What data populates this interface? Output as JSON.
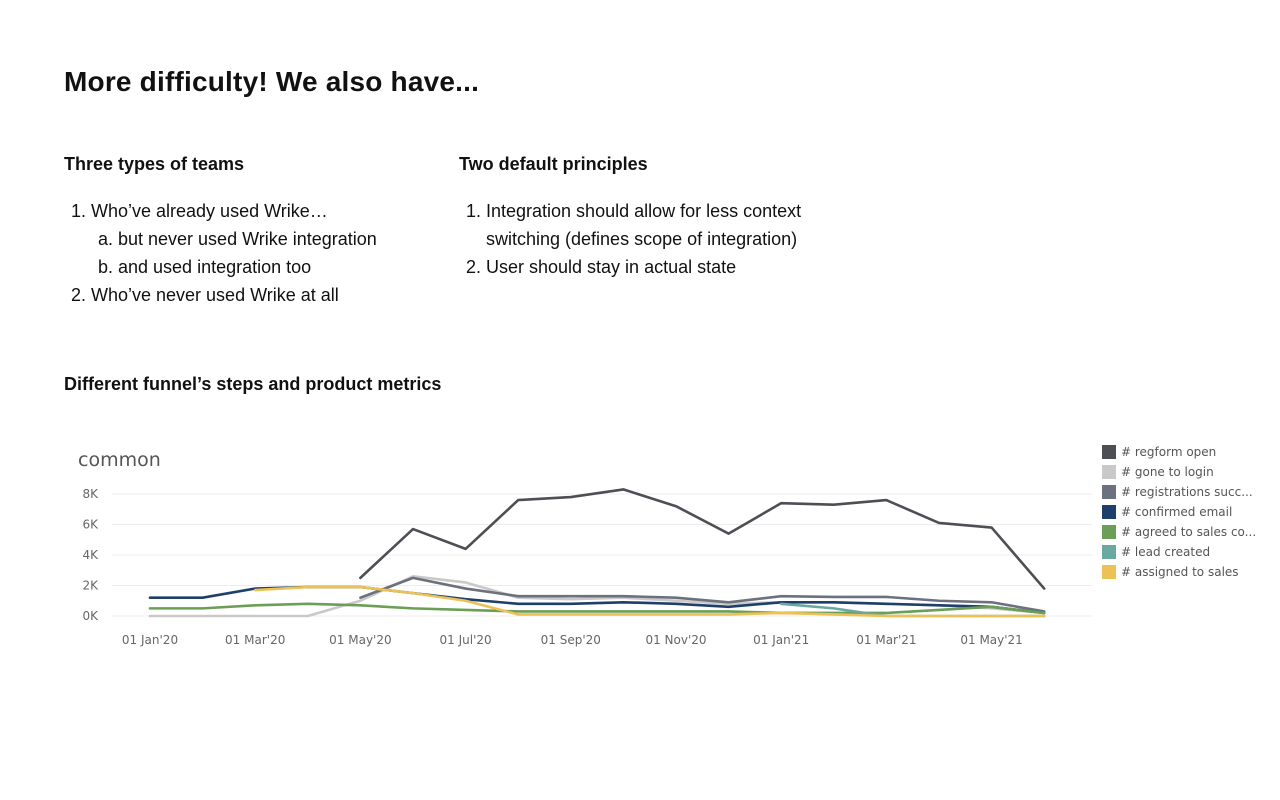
{
  "page": {
    "title": "More difficulty! We also have...",
    "left_column": {
      "heading": "Three types of teams",
      "items": [
        {
          "text": "Who’ve already used Wrike…",
          "subitems": [
            "but never used Wrike integration",
            "and used integration too"
          ]
        },
        {
          "text": "Who’ve never used Wrike at all"
        }
      ]
    },
    "right_column": {
      "heading": "Two default principles",
      "items": [
        {
          "text": "Integration should allow for less context switching (defines scope of integration)"
        },
        {
          "text": "User should stay in actual state"
        }
      ]
    },
    "chart_section_title": "Different funnel’s steps and product metrics"
  },
  "chart_data": {
    "type": "line",
    "title": "common",
    "xlabel": "",
    "ylabel": "",
    "ylim": [
      0,
      8000
    ],
    "y_ticks": [
      "0K",
      "2K",
      "4K",
      "6K",
      "8K"
    ],
    "x_tick_labels": [
      "01 Jan'20",
      "01 Mar'20",
      "01 May'20",
      "01 Jul'20",
      "01 Sep'20",
      "01 Nov'20",
      "01 Jan'21",
      "01 Mar'21",
      "01 May'21"
    ],
    "x": [
      "2020-01",
      "2020-02",
      "2020-03",
      "2020-04",
      "2020-05",
      "2020-06",
      "2020-07",
      "2020-08",
      "2020-09",
      "2020-10",
      "2020-11",
      "2020-12",
      "2021-01",
      "2021-02",
      "2021-03",
      "2021-04",
      "2021-05",
      "2021-06"
    ],
    "grid": true,
    "legend_position": "right",
    "series": [
      {
        "name": "# regform open",
        "color": "#4e4f54",
        "values": [
          null,
          null,
          null,
          null,
          2500,
          5700,
          4400,
          7600,
          7800,
          8300,
          7200,
          5400,
          7400,
          7300,
          7600,
          6100,
          5800,
          1800
        ]
      },
      {
        "name": "# gone to login",
        "color": "#c9c9c9",
        "values": [
          0,
          0,
          0,
          0,
          1000,
          2600,
          2200,
          1200,
          1100,
          1200,
          1000,
          800,
          900,
          900,
          800,
          700,
          500,
          200
        ]
      },
      {
        "name": "# registrations succ...",
        "color": "#6c717e",
        "values": [
          null,
          null,
          null,
          null,
          1200,
          2500,
          1800,
          1300,
          1300,
          1300,
          1200,
          900,
          1300,
          1250,
          1250,
          1000,
          900,
          300
        ]
      },
      {
        "name": "# confirmed email",
        "color": "#1f3f6b",
        "values": [
          1200,
          1200,
          1800,
          1900,
          1900,
          1500,
          1100,
          800,
          800,
          900,
          800,
          600,
          900,
          900,
          800,
          700,
          600,
          200
        ]
      },
      {
        "name": "# agreed to sales co...",
        "color": "#6b9f58",
        "values": [
          500,
          500,
          700,
          800,
          700,
          500,
          400,
          300,
          300,
          300,
          300,
          300,
          200,
          200,
          200,
          400,
          600,
          200
        ]
      },
      {
        "name": "# lead created",
        "color": "#6aa9a2",
        "values": [
          null,
          null,
          null,
          null,
          null,
          null,
          null,
          null,
          null,
          null,
          null,
          null,
          800,
          500,
          0,
          0,
          0,
          0
        ]
      },
      {
        "name": "# assigned to sales",
        "color": "#ecc155",
        "values": [
          null,
          null,
          1700,
          1900,
          1900,
          1500,
          1000,
          100,
          100,
          100,
          100,
          100,
          200,
          100,
          0,
          0,
          0,
          0
        ]
      }
    ]
  }
}
